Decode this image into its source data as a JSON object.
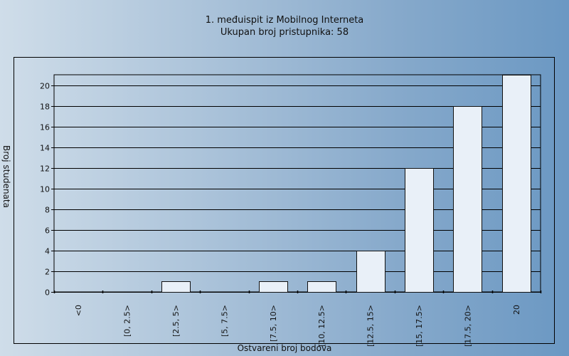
{
  "chart_data": {
    "type": "bar",
    "title": "1. međuispit iz Mobilnog Interneta",
    "subtitle": "Ukupan broj pristupnika:  58",
    "xlabel": "Ostvareni broj bodova",
    "ylabel": "Broj studenata",
    "categories": [
      "<0",
      "[0, 2.5>",
      "[2.5, 5>",
      "[5, 7.5>",
      "[7.5, 10>",
      "[10, 12.5>",
      "[12.5, 15>",
      "[15, 17.5>",
      "[17.5, 20>",
      "20"
    ],
    "values": [
      0,
      0,
      1,
      0,
      1,
      1,
      4,
      12,
      18,
      21
    ],
    "ylim": [
      0,
      21
    ],
    "yticks": [
      0,
      2,
      4,
      6,
      8,
      10,
      12,
      14,
      16,
      18,
      20
    ],
    "grid": true,
    "colors": {
      "bar_fill": "#e9f0f8",
      "bar_stroke": "#111111",
      "grid": "#000000"
    }
  }
}
